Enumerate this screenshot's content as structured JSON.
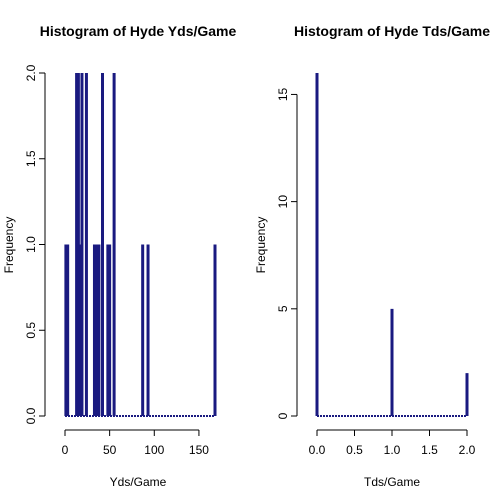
{
  "colors": {
    "bar": "#1a1a80",
    "axis": "#000000",
    "background": "#ffffff"
  },
  "chart_data": [
    {
      "type": "bar",
      "title": "Histogram of Hyde Yds/Game",
      "xlabel": "Yds/Game",
      "ylabel": "Frequency",
      "xlim": [
        0,
        168
      ],
      "ylim": [
        0,
        2
      ],
      "xticks": [
        0,
        50,
        100,
        150
      ],
      "xtick_labels": [
        "0",
        "50",
        "100",
        "150"
      ],
      "yticks": [
        0,
        0.5,
        1,
        1.5,
        2
      ],
      "ytick_labels": [
        "0.0",
        "0.5",
        "1.0",
        "1.5",
        "2.0"
      ],
      "x": [
        1,
        3,
        13,
        15,
        17,
        19,
        24,
        33,
        35,
        38,
        42,
        48,
        50,
        55,
        87,
        93,
        168
      ],
      "values": [
        1,
        1,
        2,
        2,
        1,
        2,
        2,
        1,
        1,
        1,
        2,
        1,
        1,
        2,
        1,
        1,
        1
      ]
    },
    {
      "type": "bar",
      "title": "Histogram of Hyde Tds/Game",
      "xlabel": "Tds/Game",
      "ylabel": "Frequency",
      "xlim": [
        0,
        2
      ],
      "ylim": [
        0,
        16
      ],
      "xticks": [
        0,
        0.5,
        1,
        1.5,
        2
      ],
      "xtick_labels": [
        "0.0",
        "0.5",
        "1.0",
        "1.5",
        "2.0"
      ],
      "yticks": [
        0,
        5,
        10,
        15
      ],
      "ytick_labels": [
        "0",
        "5",
        "10",
        "15"
      ],
      "x": [
        0,
        1,
        2
      ],
      "values": [
        16,
        5,
        2
      ]
    }
  ]
}
